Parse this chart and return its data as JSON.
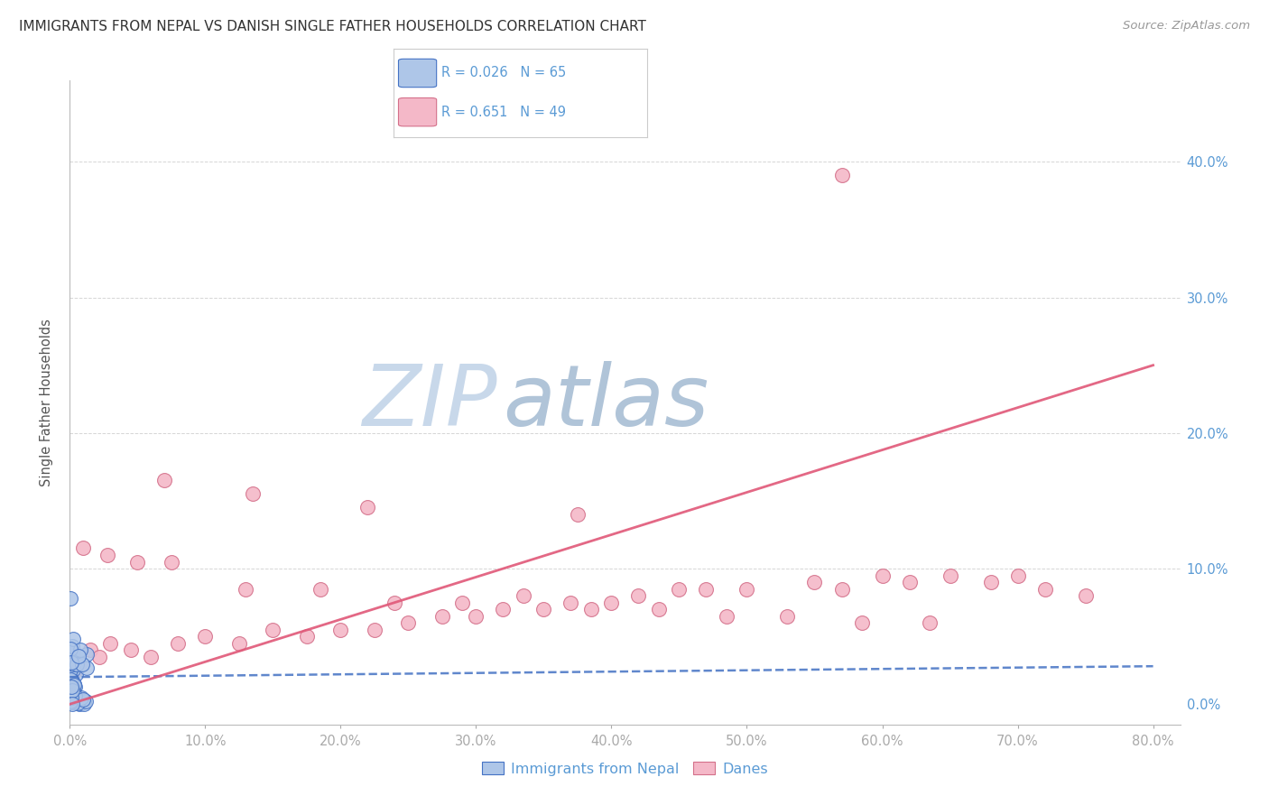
{
  "title": "IMMIGRANTS FROM NEPAL VS DANISH SINGLE FATHER HOUSEHOLDS CORRELATION CHART",
  "source": "Source: ZipAtlas.com",
  "ylabel": "Single Father Households",
  "xlim": [
    0.0,
    82.0
  ],
  "ylim": [
    -1.5,
    46.0
  ],
  "blue_color": "#aec6e8",
  "blue_edge_color": "#4472c4",
  "pink_color": "#f4b8c8",
  "pink_edge_color": "#d4708a",
  "blue_line_color": "#4472c4",
  "pink_line_color": "#e05878",
  "watermark_zip_color": "#c8d8e8",
  "watermark_atlas_color": "#b8c8d8",
  "grid_color": "#cccccc",
  "title_color": "#333333",
  "source_color": "#999999",
  "tick_color": "#5b9bd5",
  "legend_R1": "R = 0.026",
  "legend_N1": "N = 65",
  "legend_R2": "R = 0.651",
  "legend_N2": "N = 49",
  "danes_x": [
    0.4,
    0.8,
    1.5,
    2.2,
    3.0,
    4.5,
    6.0,
    8.0,
    10.0,
    12.5,
    15.0,
    17.5,
    20.0,
    22.5,
    25.0,
    27.5,
    30.0,
    32.0,
    35.0,
    37.0,
    40.0,
    42.0,
    45.0,
    47.0,
    50.0,
    55.0,
    57.0,
    60.0,
    62.0,
    65.0,
    68.0,
    70.0,
    72.0,
    75.0,
    1.0,
    2.8,
    5.0,
    7.5,
    13.0,
    18.5,
    24.0,
    29.0,
    33.5,
    38.5,
    43.5,
    48.5,
    53.0,
    58.5,
    63.5
  ],
  "danes_y": [
    2.5,
    3.0,
    4.0,
    3.5,
    4.5,
    4.0,
    3.5,
    4.5,
    5.0,
    4.5,
    5.5,
    5.0,
    5.5,
    5.5,
    6.0,
    6.5,
    6.5,
    7.0,
    7.0,
    7.5,
    7.5,
    8.0,
    8.5,
    8.5,
    8.5,
    9.0,
    8.5,
    9.5,
    9.0,
    9.5,
    9.0,
    9.5,
    8.5,
    8.0,
    11.5,
    11.0,
    10.5,
    10.5,
    8.5,
    8.5,
    7.5,
    7.5,
    8.0,
    7.0,
    7.0,
    6.5,
    6.5,
    6.0,
    6.0
  ],
  "danes_outlier1_x": 7.0,
  "danes_outlier1_y": 16.5,
  "danes_outlier2_x": 13.5,
  "danes_outlier2_y": 15.5,
  "danes_outlier3_x": 22.0,
  "danes_outlier3_y": 14.5,
  "danes_outlier4_x": 27.5,
  "danes_outlier4_y": 8.5,
  "danes_outlier5_x": 37.5,
  "danes_outlier5_y": 14.0,
  "danes_outlier6_x": 44.0,
  "danes_outlier6_y": 8.5,
  "danes_outlier7_x": 50.0,
  "danes_outlier7_y": 9.0,
  "danes_big_outlier_x": 57.0,
  "danes_big_outlier_y": 39.0,
  "danes_outlier8_x": 70.0,
  "danes_outlier8_y": 8.5,
  "nepal_seed": 42,
  "nepal_n": 65
}
